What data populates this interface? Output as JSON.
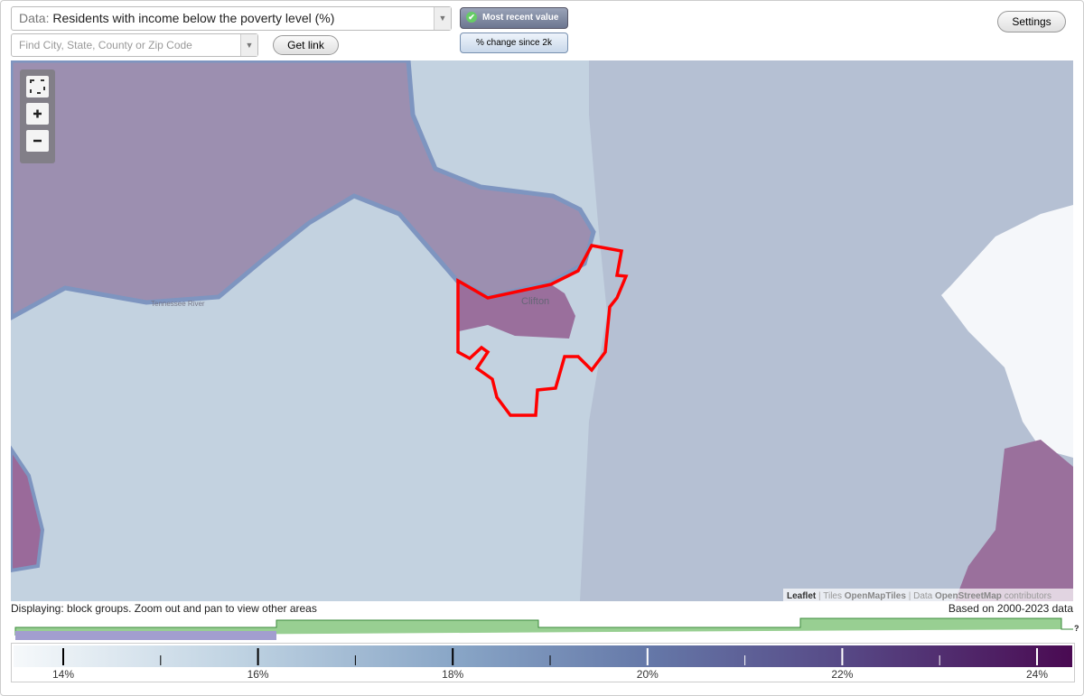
{
  "data_select": {
    "prefix": "Data:",
    "value": "Residents with income below the poverty level (%)"
  },
  "search": {
    "placeholder": "Find City, State, County or Zip Code"
  },
  "buttons": {
    "get_link": "Get link",
    "most_recent": "Most recent value",
    "change": "% change since 2k",
    "settings": "Settings"
  },
  "map": {
    "place_label": "Clifton",
    "river_label": "Tennessee River",
    "attribution": {
      "leaflet": "Leaflet",
      "sep1": "|",
      "tiles": "Tiles",
      "tiles_src": "OpenMapTiles",
      "sep2": "|",
      "data": "Data",
      "data_src": "OpenStreetMap",
      "contributors": "contributors"
    }
  },
  "status": {
    "displaying": "Displaying: block groups. Zoom out and pan to view other areas",
    "based_on": "Based on 2000-2023 data"
  },
  "timeline": {
    "help": "?"
  },
  "legend": {
    "labels": [
      "14%",
      "16%",
      "18%",
      "20%",
      "22%",
      "24%"
    ]
  }
}
